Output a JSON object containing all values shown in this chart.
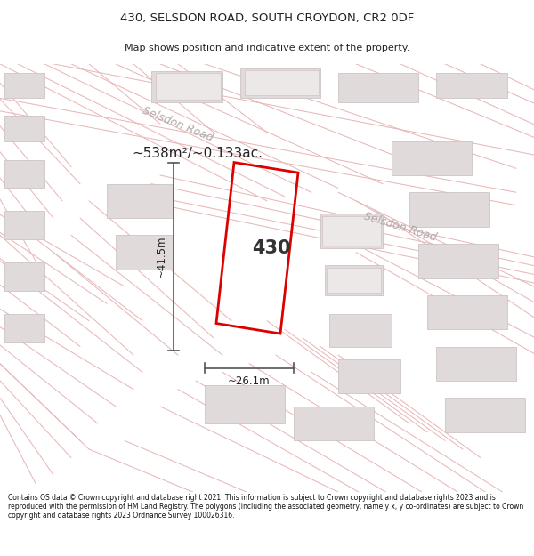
{
  "title": "430, SELSDON ROAD, SOUTH CROYDON, CR2 0DF",
  "subtitle": "Map shows position and indicative extent of the property.",
  "area_label": "~538m²/~0.133ac.",
  "property_number": "430",
  "width_label": "~26.1m",
  "height_label": "~41.5m",
  "footer_text": "Contains OS data © Crown copyright and database right 2021. This information is subject to Crown copyright and database rights 2023 and is reproduced with the permission of HM Land Registry. The polygons (including the associated geometry, namely x, y co-ordinates) are subject to Crown copyright and database rights 2023 Ordnance Survey 100026316.",
  "bg_color": "#ffffff",
  "map_bg": "#ffffff",
  "road_line_color": "#e8b8b8",
  "building_fill": "#e0dada",
  "building_edge": "#c8bebe",
  "property_outline_color": "#dd0000",
  "dim_line_color": "#555555",
  "road_label_color": "#b0a8a8",
  "title_color": "#222222",
  "road1_label": "Selsdon Road",
  "road2_label": "Selsdon Road"
}
